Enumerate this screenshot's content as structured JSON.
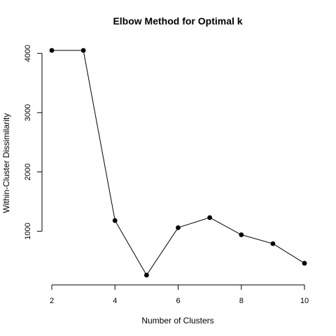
{
  "chart_data": {
    "type": "line",
    "title": "Elbow Method for Optimal k",
    "xlabel": "Number of Clusters",
    "ylabel": "Within-Cluster Dissimilarity",
    "x": [
      2,
      3,
      4,
      5,
      6,
      7,
      8,
      9,
      10
    ],
    "y": [
      4050,
      4050,
      1180,
      260,
      1060,
      1230,
      940,
      790,
      460
    ],
    "xticks": [
      2,
      4,
      6,
      8,
      10
    ],
    "yticks": [
      1000,
      2000,
      3000,
      4000
    ],
    "xlim": [
      2,
      10
    ],
    "ylim": [
      260,
      4050
    ],
    "grid": false,
    "marker": "filled-circle",
    "line_color": "#000000"
  }
}
